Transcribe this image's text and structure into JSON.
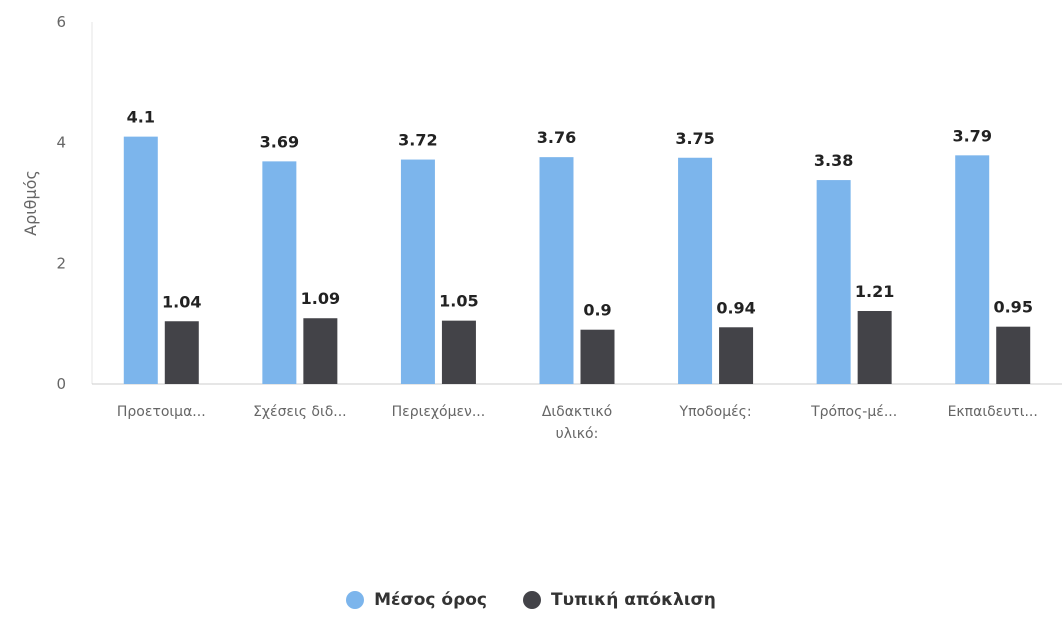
{
  "chart_data": {
    "type": "bar",
    "categories": [
      "Προετοιμα...",
      "Σχέσεις διδ...",
      "Περιεχόμεν...",
      "Διδακτικό υλικό:",
      "Υποδομές:",
      "Τρόπος-μέ...",
      "Εκπαιδευτι..."
    ],
    "series": [
      {
        "name": "Μέσος όρος",
        "color": "#7cb5ec",
        "values": [
          4.1,
          3.69,
          3.72,
          3.76,
          3.75,
          3.38,
          3.79
        ]
      },
      {
        "name": "Τυπική απόκλιση",
        "color": "#434348",
        "values": [
          1.04,
          1.09,
          1.05,
          0.9,
          0.94,
          1.21,
          0.95
        ]
      }
    ],
    "ylabel": "Αριθμός",
    "xlabel": "",
    "ylim": [
      0,
      6
    ],
    "yticks": [
      0,
      2,
      4,
      6
    ],
    "grid": false,
    "legend_position": "bottom-center",
    "data_labels": true
  }
}
